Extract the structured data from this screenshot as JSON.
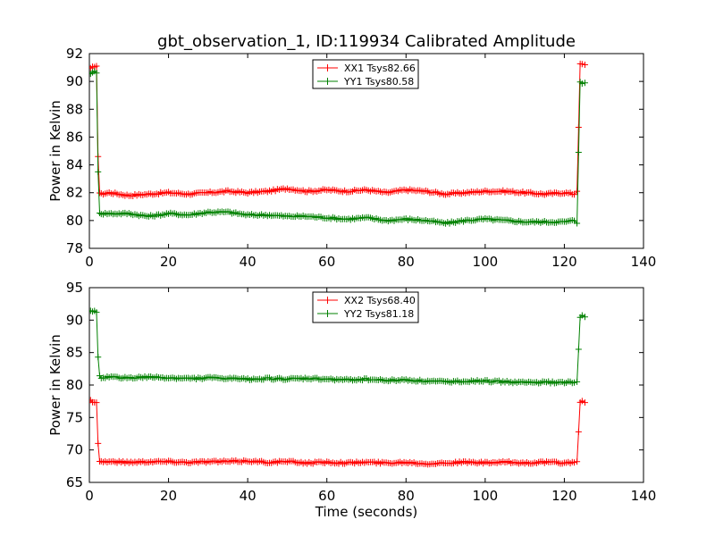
{
  "title": "gbt_observation_1, ID:119934 Calibrated Amplitude",
  "chart_data": [
    {
      "type": "line",
      "ylabel": "Power in Kelvin",
      "xlabel": "",
      "xlim": [
        0,
        140
      ],
      "ylim": [
        78,
        92
      ],
      "xticks": [
        0,
        20,
        40,
        60,
        80,
        100,
        120,
        140
      ],
      "yticks": [
        78,
        80,
        82,
        84,
        86,
        88,
        90,
        92
      ],
      "legend_position": "top-center",
      "grid": false,
      "series": [
        {
          "name": "XX1 Tsys82.66",
          "color": "#ff0000",
          "x": [
            0.3,
            0.8,
            1.3,
            1.8,
            2.2,
            2.6,
            3,
            5,
            10,
            15,
            20,
            25,
            30,
            35,
            40,
            45,
            50,
            55,
            60,
            65,
            70,
            75,
            80,
            85,
            90,
            95,
            100,
            105,
            110,
            115,
            120,
            122.5,
            123.2,
            124,
            124.5,
            125.2
          ],
          "y": [
            90.9,
            91.0,
            91.1,
            91.1,
            84.6,
            82.0,
            81.9,
            82.0,
            81.8,
            81.9,
            82.0,
            81.9,
            82.0,
            82.1,
            82.0,
            82.1,
            82.3,
            82.1,
            82.2,
            82.1,
            82.2,
            82.0,
            82.2,
            82.1,
            81.9,
            82.0,
            82.1,
            82.1,
            82.0,
            81.9,
            82.0,
            81.9,
            82.1,
            91.3,
            91.3,
            91.2
          ]
        },
        {
          "name": "YY1 Tsys80.58",
          "color": "#008000",
          "x": [
            0.3,
            0.8,
            1.3,
            1.8,
            2.2,
            2.6,
            3,
            5,
            10,
            15,
            20,
            25,
            30,
            35,
            40,
            45,
            50,
            55,
            60,
            65,
            70,
            75,
            80,
            85,
            90,
            95,
            100,
            105,
            110,
            115,
            120,
            122.5,
            123.2,
            124,
            124.5,
            125.2
          ],
          "y": [
            90.6,
            90.6,
            90.7,
            90.6,
            83.5,
            80.6,
            80.5,
            80.5,
            80.5,
            80.3,
            80.5,
            80.4,
            80.6,
            80.6,
            80.4,
            80.4,
            80.3,
            80.3,
            80.2,
            80.1,
            80.2,
            80.0,
            80.1,
            80.0,
            79.8,
            80.0,
            80.1,
            80.0,
            79.9,
            79.9,
            79.9,
            80.0,
            79.8,
            90.0,
            89.9,
            89.9
          ]
        }
      ]
    },
    {
      "type": "line",
      "ylabel": "Power in Kelvin",
      "xlabel": "Time (seconds)",
      "xlim": [
        0,
        140
      ],
      "ylim": [
        65,
        95
      ],
      "xticks": [
        0,
        20,
        40,
        60,
        80,
        100,
        120,
        140
      ],
      "yticks": [
        65,
        70,
        75,
        80,
        85,
        90,
        95
      ],
      "legend_position": "top-center",
      "grid": false,
      "series": [
        {
          "name": "XX2 Tsys68.40",
          "color": "#ff0000",
          "x": [
            0.3,
            0.8,
            1.3,
            1.8,
            2.2,
            2.6,
            3,
            5,
            10,
            15,
            20,
            25,
            30,
            35,
            40,
            45,
            50,
            55,
            60,
            65,
            70,
            75,
            80,
            85,
            90,
            95,
            100,
            105,
            110,
            115,
            120,
            122.5,
            123.2,
            124,
            124.5,
            125.2
          ],
          "y": [
            77.6,
            77.5,
            77.4,
            77.3,
            71.0,
            68.3,
            68.2,
            68.2,
            68.1,
            68.2,
            68.2,
            68.1,
            68.2,
            68.2,
            68.3,
            68.1,
            68.2,
            68.0,
            68.1,
            68.0,
            68.1,
            68.0,
            68.1,
            67.9,
            68.0,
            68.1,
            68.0,
            68.1,
            68.0,
            68.1,
            68.0,
            68.1,
            68.2,
            77.4,
            77.4,
            77.3
          ]
        },
        {
          "name": "YY2 Tsys81.18",
          "color": "#008000",
          "x": [
            0.3,
            0.8,
            1.3,
            1.8,
            2.2,
            2.6,
            3,
            5,
            10,
            15,
            20,
            25,
            30,
            35,
            40,
            45,
            50,
            55,
            60,
            65,
            70,
            75,
            80,
            85,
            90,
            95,
            100,
            105,
            110,
            115,
            120,
            122.5,
            123.2,
            124,
            124.5,
            125.2
          ],
          "y": [
            91.3,
            91.2,
            91.3,
            91.2,
            84.3,
            81.3,
            81.2,
            81.2,
            81.1,
            81.2,
            81.1,
            81.0,
            81.1,
            81.0,
            80.9,
            81.0,
            80.9,
            81.0,
            80.9,
            80.8,
            80.9,
            80.7,
            80.8,
            80.6,
            80.5,
            80.6,
            80.6,
            80.5,
            80.4,
            80.4,
            80.4,
            80.4,
            80.5,
            90.5,
            90.6,
            90.5
          ]
        }
      ]
    }
  ]
}
